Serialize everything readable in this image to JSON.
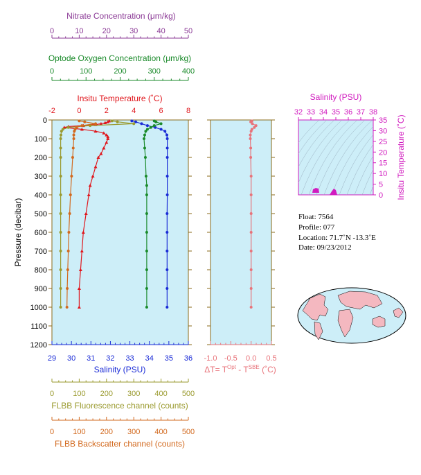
{
  "colors": {
    "nitrate": "#8b3a96",
    "oxygen": "#1a8a2a",
    "temperature": "#e0161c",
    "salinity": "#1a2bd6",
    "fluorescence": "#9a9a2e",
    "backscatter": "#d2691e",
    "delta": "#e8737a",
    "ts": "#d11bbf",
    "panel_bg": "#cdeef8",
    "frame": "#8a6a1a"
  },
  "axes": {
    "nitrate": {
      "title": "Nitrate Concentration (μm/kg)",
      "min": 0,
      "max": 50,
      "ticks": [
        "0",
        "10",
        "20",
        "30",
        "40",
        "50"
      ]
    },
    "oxygen": {
      "title": "Optode Oxygen Concentration (μm/kg)",
      "min": 0,
      "max": 400,
      "ticks": [
        "0",
        "100",
        "200",
        "300",
        "400"
      ]
    },
    "temperature": {
      "title": "Insitu Temperature (˚C)",
      "min": -2,
      "max": 8,
      "ticks": [
        "-2",
        "0",
        "2",
        "4",
        "6",
        "8"
      ]
    },
    "salinity": {
      "title": "Salinity (PSU)",
      "min": 29,
      "max": 36,
      "ticks": [
        "29",
        "30",
        "31",
        "32",
        "33",
        "34",
        "35",
        "36"
      ]
    },
    "pressure": {
      "title": "Pressure (decibar)",
      "min": 0,
      "max": 1200,
      "ticks": [
        "0",
        "100",
        "200",
        "300",
        "400",
        "500",
        "600",
        "700",
        "800",
        "900",
        "1000",
        "1100",
        "1200"
      ]
    },
    "fluorescence": {
      "title": "FLBB Fluorescence channel (counts)",
      "min": 0,
      "max": 500,
      "ticks": [
        "0",
        "100",
        "200",
        "300",
        "400",
        "500"
      ]
    },
    "backscatter": {
      "title": "FLBB Backscatter channel (counts)",
      "min": 0,
      "max": 500,
      "ticks": [
        "0",
        "100",
        "200",
        "300",
        "400",
        "500"
      ]
    },
    "delta": {
      "title_prefix": "ΔT= T",
      "title_sup1": "Opt",
      "title_mid": " - T",
      "title_sup2": "SBE",
      "title_suffix": " (˚C)",
      "min": -1.0,
      "max": 0.5,
      "ticks": [
        "-1.0",
        "-0.5",
        "0.0",
        "0.5"
      ]
    },
    "ts_salinity": {
      "title": "Salinity (PSU)",
      "min": 32,
      "max": 38,
      "ticks": [
        "32",
        "33",
        "34",
        "35",
        "36",
        "37",
        "38"
      ]
    },
    "ts_temperature": {
      "title": "Insitu Temperature (˚C)",
      "min": 0,
      "max": 35,
      "ticks": [
        "0",
        "5",
        "10",
        "15",
        "20",
        "25",
        "30",
        "35"
      ]
    }
  },
  "info": {
    "float": "Float:  7564",
    "profile": "Profile:  077",
    "location": "Location:  71.7˚N  -13.3˚E",
    "date": "Date:  09/23/2012"
  },
  "chart_data": [
    {
      "type": "line",
      "name_key": "temperature",
      "pressure": [
        5,
        10,
        15,
        20,
        25,
        30,
        35,
        40,
        50,
        60,
        70,
        80,
        90,
        100,
        120,
        150,
        180,
        200,
        250,
        300,
        350,
        400,
        500,
        600,
        700,
        800,
        900,
        1000
      ],
      "values": [
        2.2,
        2.1,
        1.9,
        1.6,
        1.2,
        0.3,
        -0.8,
        -1.1,
        0.2,
        1.2,
        1.8,
        2.0,
        2.1,
        2.1,
        2.0,
        1.8,
        1.6,
        1.4,
        1.2,
        1.0,
        0.8,
        0.7,
        0.5,
        0.3,
        0.2,
        0.1,
        0.0,
        0.0
      ]
    },
    {
      "type": "line",
      "name_key": "salinity",
      "pressure": [
        5,
        10,
        20,
        30,
        40,
        50,
        60,
        80,
        100,
        150,
        200,
        300,
        400,
        500,
        600,
        700,
        800,
        900,
        1000
      ],
      "values": [
        33.1,
        33.3,
        33.6,
        33.9,
        34.3,
        34.6,
        34.8,
        34.9,
        34.92,
        34.92,
        34.92,
        34.92,
        34.92,
        34.91,
        34.91,
        34.91,
        34.91,
        34.91,
        34.91
      ]
    },
    {
      "type": "line",
      "name_key": "oxygen",
      "pressure": [
        5,
        10,
        20,
        30,
        40,
        50,
        60,
        80,
        100,
        150,
        200,
        300,
        350,
        400,
        500,
        600,
        700,
        800,
        900,
        1000
      ],
      "values": [
        300,
        305,
        320,
        300,
        290,
        280,
        275,
        272,
        270,
        272,
        274,
        276,
        278,
        278,
        278,
        278,
        278,
        278,
        278,
        278
      ]
    },
    {
      "type": "line",
      "name_key": "fluorescence",
      "pressure": [
        5,
        10,
        20,
        30,
        40,
        50,
        60,
        80,
        100,
        150,
        200,
        300,
        400,
        500,
        600,
        700,
        800,
        900,
        1000
      ],
      "values": [
        220,
        240,
        300,
        140,
        60,
        40,
        35,
        33,
        32,
        32,
        32,
        32,
        32,
        32,
        32,
        32,
        32,
        32,
        32
      ]
    },
    {
      "type": "line",
      "name_key": "backscatter",
      "pressure": [
        5,
        10,
        20,
        30,
        40,
        50,
        60,
        80,
        100,
        150,
        200,
        300,
        400,
        500,
        600,
        700,
        800,
        900,
        1000
      ],
      "values": [
        100,
        120,
        160,
        110,
        90,
        85,
        82,
        80,
        80,
        78,
        76,
        72,
        68,
        65,
        62,
        60,
        58,
        56,
        55
      ]
    },
    {
      "type": "line",
      "name_key": "delta",
      "pressure": [
        5,
        10,
        20,
        30,
        40,
        50,
        60,
        80,
        100,
        150,
        200,
        300,
        400,
        500,
        600,
        700,
        800,
        900,
        1000
      ],
      "values": [
        0.02,
        -0.01,
        0.03,
        0.12,
        0.08,
        0.02,
        0.0,
        -0.02,
        -0.02,
        -0.01,
        -0.01,
        0.0,
        0.0,
        0.0,
        0.0,
        0.0,
        0.0,
        0.0,
        0.0
      ]
    }
  ]
}
